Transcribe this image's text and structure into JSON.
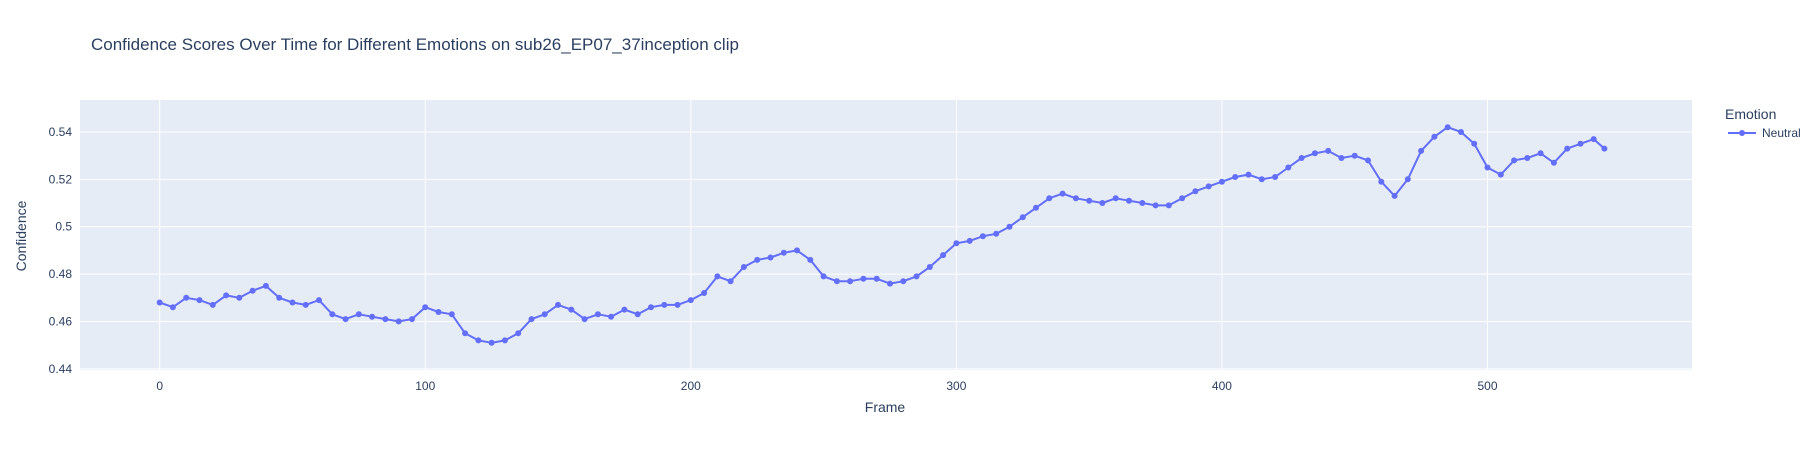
{
  "chart_data": {
    "type": "line",
    "title": "Confidence Scores Over Time for Different Emotions on sub26_EP07_37inception clip",
    "xlabel": "Frame",
    "ylabel": "Confidence",
    "xlim": [
      -30,
      577
    ],
    "ylim": [
      0.4395,
      0.5535
    ],
    "x_ticks": [
      0,
      100,
      200,
      300,
      400,
      500
    ],
    "y_ticks": [
      0.44,
      0.46,
      0.48,
      0.5,
      0.52,
      0.54
    ],
    "x_tick_labels": [
      "0",
      "100",
      "200",
      "300",
      "400",
      "500"
    ],
    "y_tick_labels": [
      "0.44",
      "0.46",
      "0.48",
      "0.5",
      "0.52",
      "0.54"
    ],
    "grid": true,
    "legend": {
      "title": "Emotion",
      "position": "top-right"
    },
    "series": [
      {
        "name": "Neutral",
        "color": "#636efa",
        "mode": "lines+markers",
        "x": [
          0,
          5,
          10,
          15,
          20,
          25,
          30,
          35,
          40,
          45,
          50,
          55,
          60,
          65,
          70,
          75,
          80,
          85,
          90,
          95,
          100,
          105,
          110,
          115,
          120,
          125,
          130,
          135,
          140,
          145,
          150,
          155,
          160,
          165,
          170,
          175,
          180,
          185,
          190,
          195,
          200,
          205,
          210,
          215,
          220,
          225,
          230,
          235,
          240,
          245,
          250,
          255,
          260,
          265,
          270,
          275,
          280,
          285,
          290,
          295,
          300,
          305,
          310,
          315,
          320,
          325,
          330,
          335,
          340,
          345,
          350,
          355,
          360,
          365,
          370,
          375,
          380,
          385,
          390,
          395,
          400,
          405,
          410,
          415,
          420,
          425,
          430,
          435,
          440,
          445,
          450,
          455,
          460,
          465,
          470,
          475,
          480,
          485,
          490,
          495,
          500,
          505,
          510,
          515,
          520,
          525,
          530,
          535,
          540,
          544
        ],
        "y": [
          0.468,
          0.466,
          0.47,
          0.469,
          0.467,
          0.471,
          0.47,
          0.473,
          0.475,
          0.47,
          0.468,
          0.467,
          0.469,
          0.463,
          0.461,
          0.463,
          0.462,
          0.461,
          0.46,
          0.461,
          0.466,
          0.464,
          0.463,
          0.455,
          0.452,
          0.451,
          0.452,
          0.455,
          0.461,
          0.463,
          0.467,
          0.465,
          0.461,
          0.463,
          0.462,
          0.465,
          0.463,
          0.466,
          0.467,
          0.467,
          0.469,
          0.472,
          0.479,
          0.477,
          0.483,
          0.486,
          0.487,
          0.489,
          0.49,
          0.486,
          0.479,
          0.477,
          0.477,
          0.478,
          0.478,
          0.476,
          0.477,
          0.479,
          0.483,
          0.488,
          0.493,
          0.494,
          0.496,
          0.497,
          0.5,
          0.504,
          0.508,
          0.512,
          0.514,
          0.512,
          0.511,
          0.51,
          0.512,
          0.511,
          0.51,
          0.509,
          0.509,
          0.512,
          0.515,
          0.517,
          0.519,
          0.521,
          0.522,
          0.52,
          0.521,
          0.525,
          0.529,
          0.531,
          0.532,
          0.529,
          0.53,
          0.528,
          0.519,
          0.513,
          0.52,
          0.532,
          0.538,
          0.542,
          0.54,
          0.535,
          0.525,
          0.522,
          0.528,
          0.529,
          0.531,
          0.527,
          0.533,
          0.535,
          0.537,
          0.533
        ]
      }
    ]
  }
}
